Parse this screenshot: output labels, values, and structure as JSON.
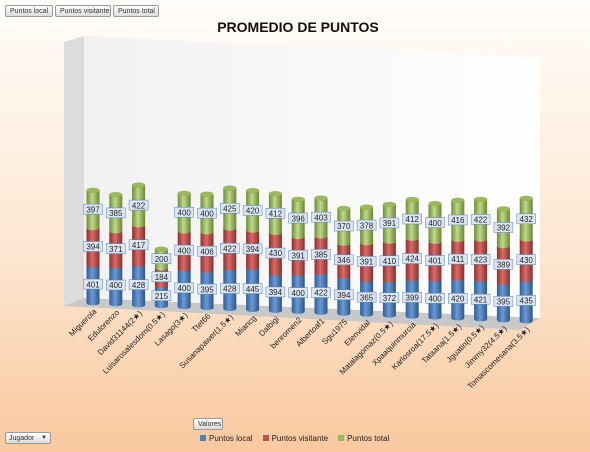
{
  "fields": {
    "series_buttons": [
      "Puntos local",
      "Puntos visitante",
      "Puntos total"
    ],
    "values_button": "Valores",
    "filter_button": "Jugador"
  },
  "colors": {
    "local": "#4f81bd",
    "visitante": "#c0504d",
    "total": "#9bbb59",
    "label_bg": "#dbe5f1",
    "label_border": "#4f81bd"
  },
  "chart_data": {
    "type": "bar",
    "stacked": true,
    "orientation": "vertical-3d-cylinder",
    "title": "PROMEDIO DE PUNTOS",
    "legend": "bottom",
    "grid": false,
    "categories": [
      "Miguerola",
      "Edulorenzo",
      "David31144(2★)",
      "Luisarosalesdom(0.5★)",
      "Lasago(3★)",
      "Ttet66",
      "Susanapawer(1.5★)",
      "Miancg",
      "Dalbigi",
      "benromen2",
      "Albertoaf1",
      "Sgu1975",
      "Elenvidal",
      "Matalagomaz(0.5★)",
      "Xpaaquinmurcia",
      "Karlosroa(17.5★)",
      "Tataana(1.5★)",
      "Jguatin(0.5★)",
      "Jimmy32(4.5★)",
      "Tomascomesana(3.5★)"
    ],
    "series": [
      {
        "name": "Puntos local",
        "values": [
          401,
          400,
          428,
          215,
          400,
          395,
          428,
          445,
          394,
          400,
          422,
          394,
          365,
          372,
          399,
          400,
          420,
          421,
          395,
          435
        ]
      },
      {
        "name": "Puntos visitante",
        "values": [
          394,
          371,
          417,
          184,
          400,
          406,
          422,
          394,
          430,
          391,
          385,
          346,
          391,
          410,
          424,
          401,
          411,
          423,
          389,
          430
        ]
      },
      {
        "name": "Puntos total",
        "values": [
          397,
          385,
          422,
          200,
          400,
          400,
          425,
          420,
          412,
          396,
          403,
          370,
          378,
          391,
          412,
          400,
          416,
          422,
          392,
          432
        ]
      }
    ]
  }
}
